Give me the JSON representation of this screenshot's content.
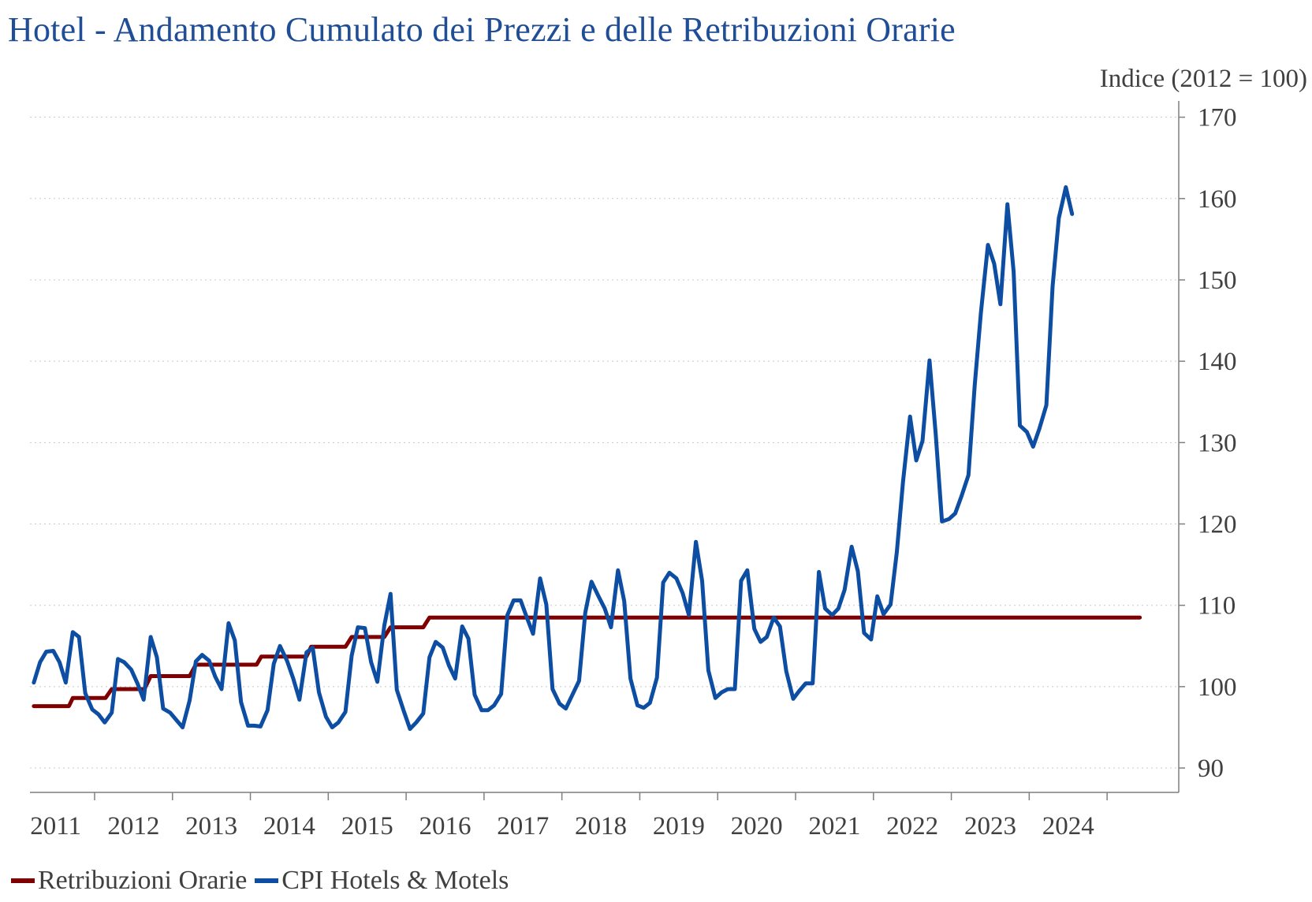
{
  "title": "Hotel - Andamento Cumulato dei Prezzi e delle Retribuzioni Orarie",
  "unit_label": "Indice (2012 = 100)",
  "legend": [
    {
      "label": "Retribuzioni Orarie",
      "color": "#7f0000"
    },
    {
      "label": "CPI Hotels & Motels",
      "color": "#0d4ea3"
    }
  ],
  "chart_data": {
    "type": "line",
    "title": "Hotel - Andamento Cumulato dei Prezzi e delle Retribuzioni Orarie",
    "ylabel": "Indice (2012 = 100)",
    "y_axis_side": "right",
    "ylim": [
      87,
      172
    ],
    "yticks": [
      90,
      100,
      110,
      120,
      130,
      140,
      150,
      160,
      170
    ],
    "xlim": [
      2010.17,
      2024.92
    ],
    "xticks": [
      "2011",
      "2012",
      "2013",
      "2014",
      "2015",
      "2016",
      "2017",
      "2018",
      "2019",
      "2020",
      "2021",
      "2022",
      "2023",
      "2024"
    ],
    "grid": "horizontal dotted",
    "legend_position": "bottom-left",
    "series": [
      {
        "name": "Retribuzioni Orarie",
        "color": "#7f0000",
        "points": [
          [
            2010.22,
            97.6
          ],
          [
            2010.67,
            97.6
          ],
          [
            2010.72,
            98.6
          ],
          [
            2011.14,
            98.6
          ],
          [
            2011.22,
            99.7
          ],
          [
            2011.64,
            99.7
          ],
          [
            2011.72,
            101.3
          ],
          [
            2012.22,
            101.3
          ],
          [
            2012.3,
            102.7
          ],
          [
            2013.08,
            102.7
          ],
          [
            2013.14,
            103.7
          ],
          [
            2013.72,
            103.7
          ],
          [
            2013.78,
            104.9
          ],
          [
            2014.22,
            104.9
          ],
          [
            2014.3,
            106.1
          ],
          [
            2014.72,
            106.1
          ],
          [
            2014.8,
            107.3
          ],
          [
            2015.22,
            107.3
          ],
          [
            2015.3,
            108.5
          ],
          [
            2024.42,
            108.5
          ]
        ]
      },
      {
        "name": "CPI Hotels & Motels",
        "color": "#0d4ea3",
        "points": [
          [
            2010.22,
            100.5
          ],
          [
            2010.3,
            103.0
          ],
          [
            2010.38,
            104.3
          ],
          [
            2010.47,
            104.4
          ],
          [
            2010.55,
            103.0
          ],
          [
            2010.63,
            100.5
          ],
          [
            2010.72,
            106.7
          ],
          [
            2010.8,
            106.1
          ],
          [
            2010.88,
            99.2
          ],
          [
            2010.97,
            97.2
          ],
          [
            2011.05,
            96.6
          ],
          [
            2011.13,
            95.6
          ],
          [
            2011.22,
            96.8
          ],
          [
            2011.3,
            103.4
          ],
          [
            2011.38,
            103.0
          ],
          [
            2011.47,
            102.1
          ],
          [
            2011.55,
            100.4
          ],
          [
            2011.63,
            98.4
          ],
          [
            2011.72,
            106.1
          ],
          [
            2011.8,
            103.6
          ],
          [
            2011.88,
            97.3
          ],
          [
            2011.97,
            96.8
          ],
          [
            2012.05,
            95.9
          ],
          [
            2012.13,
            95.0
          ],
          [
            2012.22,
            98.3
          ],
          [
            2012.3,
            103.1
          ],
          [
            2012.38,
            103.9
          ],
          [
            2012.47,
            103.2
          ],
          [
            2012.55,
            101.2
          ],
          [
            2012.63,
            99.7
          ],
          [
            2012.72,
            107.8
          ],
          [
            2012.8,
            105.7
          ],
          [
            2012.88,
            98.1
          ],
          [
            2012.97,
            95.2
          ],
          [
            2013.05,
            95.2
          ],
          [
            2013.13,
            95.1
          ],
          [
            2013.22,
            97.1
          ],
          [
            2013.3,
            102.8
          ],
          [
            2013.38,
            105.0
          ],
          [
            2013.47,
            103.2
          ],
          [
            2013.55,
            101.0
          ],
          [
            2013.63,
            98.4
          ],
          [
            2013.72,
            104.2
          ],
          [
            2013.8,
            104.8
          ],
          [
            2013.88,
            99.3
          ],
          [
            2013.97,
            96.3
          ],
          [
            2014.05,
            95.0
          ],
          [
            2014.13,
            95.6
          ],
          [
            2014.22,
            96.9
          ],
          [
            2014.3,
            103.8
          ],
          [
            2014.38,
            107.3
          ],
          [
            2014.47,
            107.2
          ],
          [
            2014.55,
            103.0
          ],
          [
            2014.63,
            100.6
          ],
          [
            2014.72,
            107.5
          ],
          [
            2014.8,
            111.4
          ],
          [
            2014.88,
            99.6
          ],
          [
            2014.97,
            97.0
          ],
          [
            2015.05,
            94.8
          ],
          [
            2015.13,
            95.6
          ],
          [
            2015.22,
            96.7
          ],
          [
            2015.3,
            103.6
          ],
          [
            2015.38,
            105.5
          ],
          [
            2015.47,
            104.8
          ],
          [
            2015.55,
            102.6
          ],
          [
            2015.63,
            101.0
          ],
          [
            2015.72,
            107.4
          ],
          [
            2015.8,
            105.9
          ],
          [
            2015.88,
            99.0
          ],
          [
            2015.97,
            97.1
          ],
          [
            2016.05,
            97.1
          ],
          [
            2016.13,
            97.7
          ],
          [
            2016.22,
            99.1
          ],
          [
            2016.3,
            108.8
          ],
          [
            2016.38,
            110.6
          ],
          [
            2016.47,
            110.6
          ],
          [
            2016.55,
            108.5
          ],
          [
            2016.63,
            106.5
          ],
          [
            2016.72,
            113.3
          ],
          [
            2016.8,
            110.1
          ],
          [
            2016.88,
            99.7
          ],
          [
            2016.97,
            97.9
          ],
          [
            2017.05,
            97.3
          ],
          [
            2017.13,
            98.9
          ],
          [
            2017.22,
            100.7
          ],
          [
            2017.3,
            109.1
          ],
          [
            2017.38,
            112.9
          ],
          [
            2017.47,
            111.1
          ],
          [
            2017.55,
            109.6
          ],
          [
            2017.63,
            107.3
          ],
          [
            2017.72,
            114.3
          ],
          [
            2017.8,
            110.5
          ],
          [
            2017.88,
            101.0
          ],
          [
            2017.97,
            97.7
          ],
          [
            2018.05,
            97.4
          ],
          [
            2018.13,
            98.0
          ],
          [
            2018.22,
            101.1
          ],
          [
            2018.3,
            112.8
          ],
          [
            2018.38,
            114.0
          ],
          [
            2018.47,
            113.3
          ],
          [
            2018.55,
            111.5
          ],
          [
            2018.63,
            108.8
          ],
          [
            2018.72,
            117.8
          ],
          [
            2018.8,
            113.0
          ],
          [
            2018.88,
            102.0
          ],
          [
            2018.97,
            98.6
          ],
          [
            2019.05,
            99.3
          ],
          [
            2019.13,
            99.7
          ],
          [
            2019.22,
            99.7
          ],
          [
            2019.3,
            113.0
          ],
          [
            2019.38,
            114.3
          ],
          [
            2019.47,
            107.1
          ],
          [
            2019.55,
            105.5
          ],
          [
            2019.63,
            106.1
          ],
          [
            2019.72,
            108.5
          ],
          [
            2019.8,
            107.4
          ],
          [
            2019.88,
            101.9
          ],
          [
            2019.97,
            98.5
          ],
          [
            2020.05,
            99.5
          ],
          [
            2020.13,
            100.4
          ],
          [
            2020.22,
            100.4
          ],
          [
            2020.3,
            114.1
          ],
          [
            2020.38,
            109.6
          ],
          [
            2020.47,
            108.8
          ],
          [
            2020.55,
            109.6
          ],
          [
            2020.63,
            111.9
          ],
          [
            2020.72,
            117.2
          ],
          [
            2020.8,
            114.2
          ],
          [
            2020.88,
            106.6
          ],
          [
            2020.97,
            105.8
          ],
          [
            2021.05,
            111.1
          ],
          [
            2021.13,
            108.9
          ],
          [
            2021.22,
            110.1
          ],
          [
            2021.3,
            116.5
          ],
          [
            2021.38,
            125.2
          ],
          [
            2021.47,
            133.2
          ],
          [
            2021.55,
            127.8
          ],
          [
            2021.63,
            130.2
          ],
          [
            2021.72,
            140.1
          ],
          [
            2021.8,
            131.0
          ],
          [
            2021.88,
            120.3
          ],
          [
            2021.97,
            120.6
          ],
          [
            2022.05,
            121.3
          ],
          [
            2022.13,
            123.4
          ],
          [
            2022.22,
            126.0
          ],
          [
            2022.3,
            137.0
          ],
          [
            2022.38,
            146.0
          ],
          [
            2022.47,
            154.3
          ],
          [
            2022.55,
            152.0
          ],
          [
            2022.63,
            147.0
          ],
          [
            2022.72,
            159.3
          ],
          [
            2022.8,
            151.0
          ],
          [
            2022.88,
            132.1
          ],
          [
            2022.97,
            131.3
          ],
          [
            2023.05,
            129.5
          ],
          [
            2023.13,
            131.7
          ],
          [
            2023.22,
            134.6
          ],
          [
            2023.3,
            149.2
          ],
          [
            2023.38,
            157.6
          ],
          [
            2023.47,
            161.4
          ],
          [
            2023.55,
            158.1
          ]
        ]
      }
    ]
  }
}
